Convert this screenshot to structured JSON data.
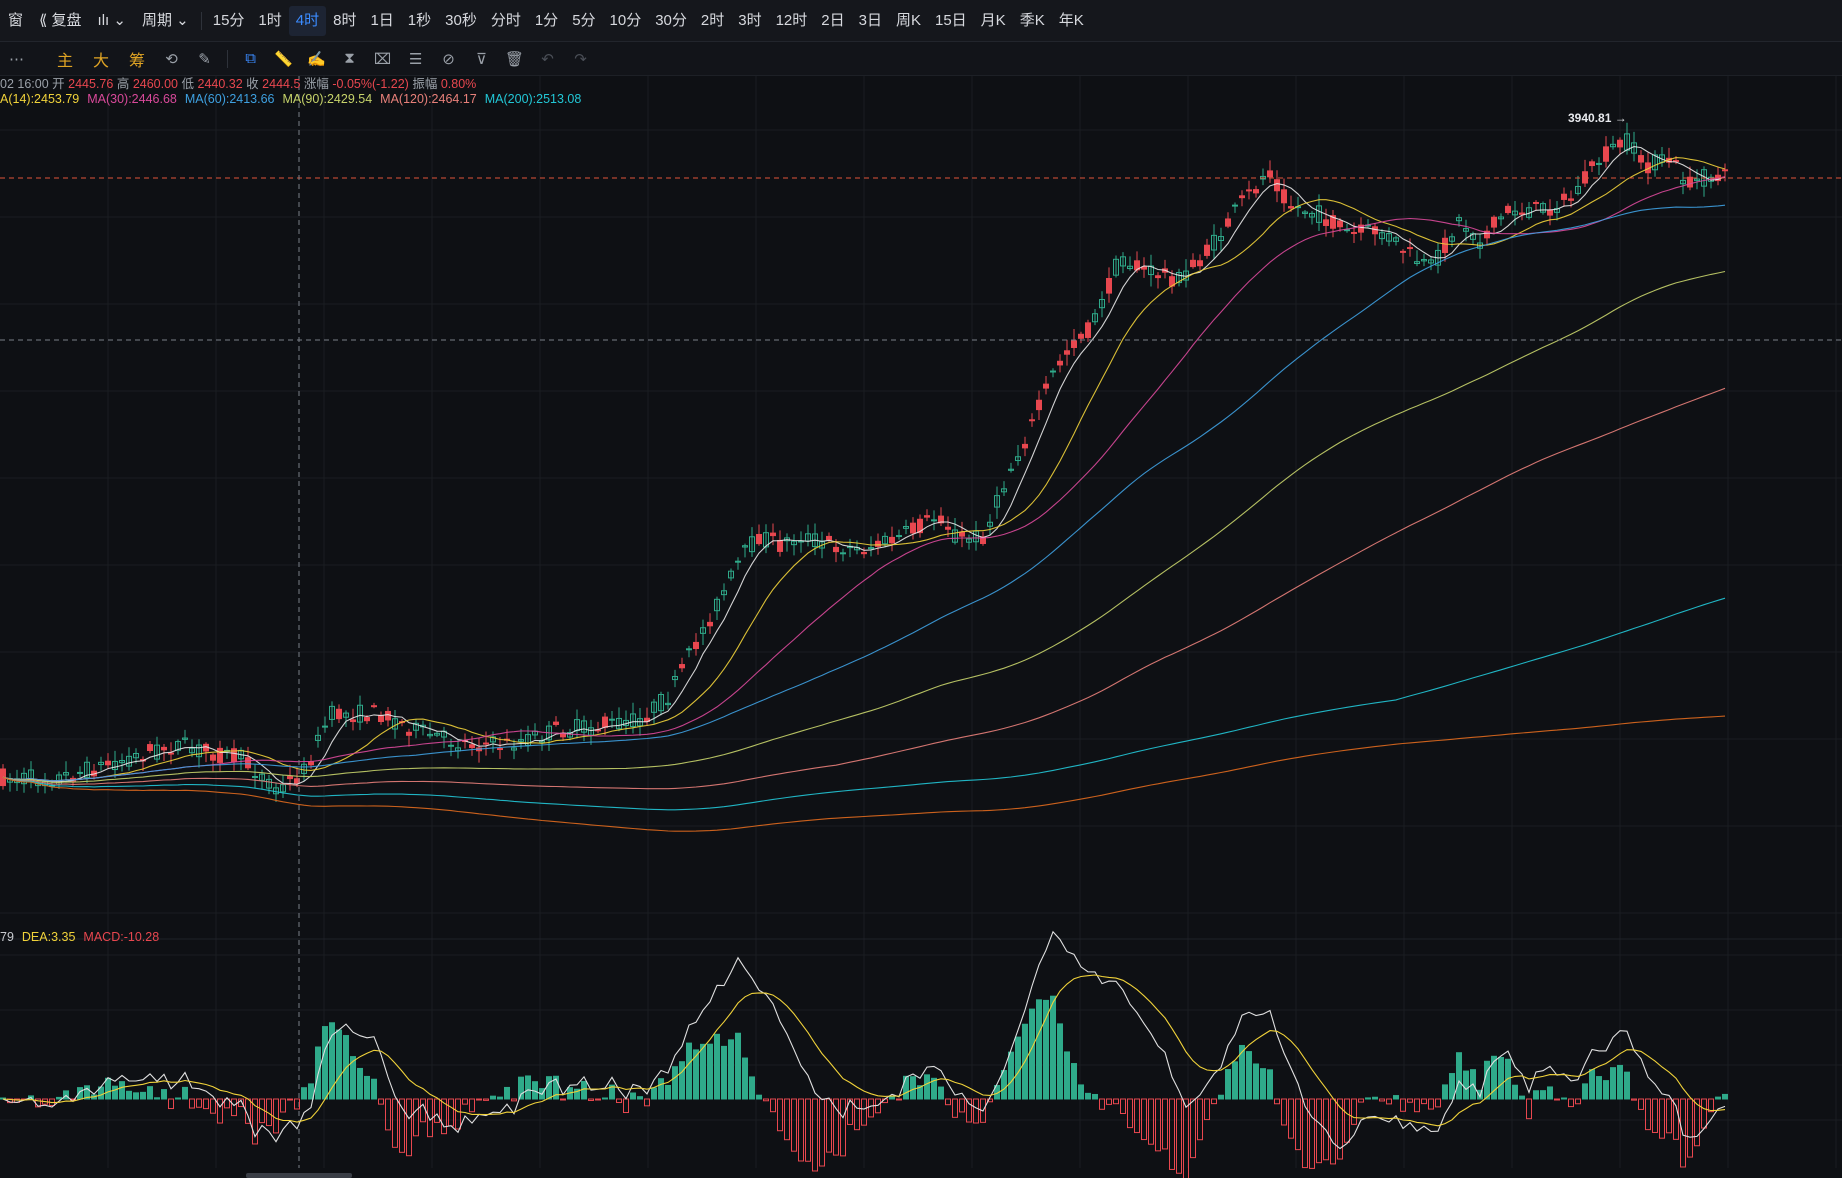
{
  "topbar": {
    "window_label": "窗",
    "replay_label": "复盘",
    "period_label": "周期",
    "periods": [
      "15分",
      "1时",
      "4时",
      "8时",
      "1日",
      "1秒",
      "30秒",
      "分时",
      "1分",
      "5分",
      "10分",
      "30分",
      "2时",
      "3时",
      "12时",
      "2日",
      "3日",
      "周K",
      "15日",
      "月K",
      "季K",
      "年K"
    ],
    "active_period": "4时"
  },
  "toolbar": {
    "more_label": "⋯",
    "indicators": [
      "主",
      "大",
      "筹"
    ]
  },
  "info": {
    "time": "02 16:00",
    "open_label": "开",
    "open": "2445.76",
    "high_label": "高",
    "high": "2460.00",
    "low_label": "低",
    "low": "2440.32",
    "close_label": "收",
    "close": "2444.5",
    "change_label": "涨幅",
    "change": "-0.05%(-1.22)",
    "amplitude_label": "振幅",
    "amplitude": "0.80%"
  },
  "ma_legend": [
    {
      "text": "A(14):2453.79",
      "color": "#f0d23a"
    },
    {
      "text": "MA(30):2446.68",
      "color": "#d9499a"
    },
    {
      "text": "MA(60):2413.66",
      "color": "#3ea0e0"
    },
    {
      "text": "MA(90):2429.54",
      "color": "#c6d36a"
    },
    {
      "text": "MA(120):2464.17",
      "color": "#e8807a"
    },
    {
      "text": "MA(200):2513.08",
      "color": "#22c7d6"
    }
  ],
  "macd_legend": [
    {
      "text": "79",
      "color": "#c9ccd1"
    },
    {
      "text": "DEA:3.35",
      "color": "#f0d23a"
    },
    {
      "text": "MACD:-10.28",
      "color": "#e8474f"
    }
  ],
  "colors": {
    "up": "#2faa8a",
    "down": "#e8474f",
    "price_line": "#e0553a",
    "grid": "#1a1d22"
  },
  "chart_data": {
    "type": "candlestick",
    "annotation": "3940.81",
    "ma_colors": [
      "#e8e8e8",
      "#f0d23a",
      "#d9499a",
      "#3ea0e0",
      "#c6d36a",
      "#e8807a",
      "#22c7d6",
      "#e06a1e"
    ],
    "macd_colors": {
      "dif": "#e0e0e0",
      "dea": "#f0d23a"
    }
  }
}
